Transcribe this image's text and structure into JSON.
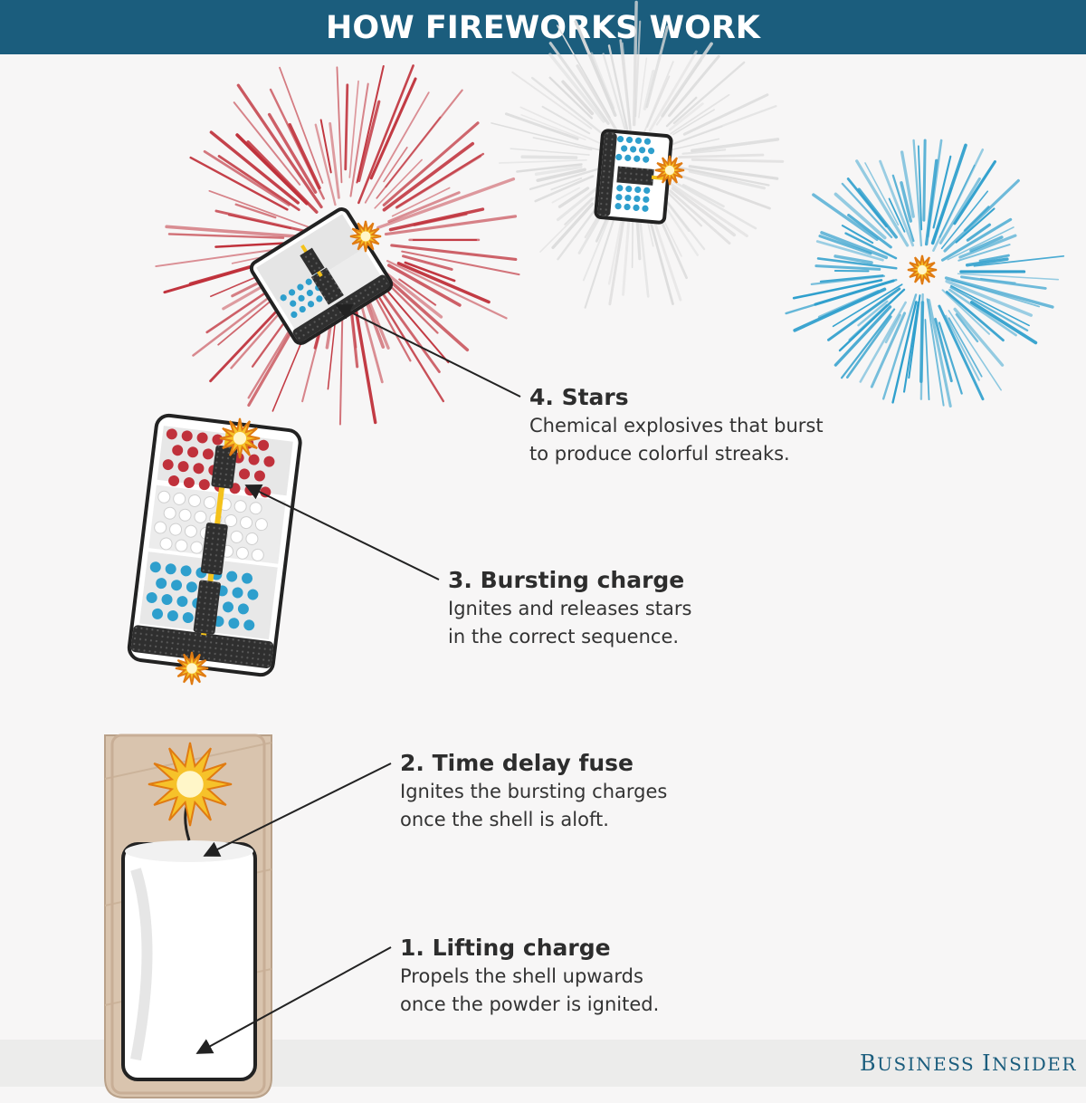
{
  "header": {
    "title": "HOW FIREWORKS WORK"
  },
  "labels": {
    "stars": {
      "title": "4. Stars",
      "desc": "Chemical explosives that burst\nto produce colorful streaks."
    },
    "bursting": {
      "title": "3. Bursting charge",
      "desc": "Ignites and releases stars\nin the correct sequence."
    },
    "fuse": {
      "title": "2. Time delay fuse",
      "desc": "Ignites the bursting charges\nonce the shell is aloft."
    },
    "lifting": {
      "title": "1. Lifting charge",
      "desc": "Propels the shell upwards\nonce the powder is ignited."
    }
  },
  "brand": {
    "b": "B",
    "usiness": "USINESS",
    "i": "I",
    "nsider": "NSIDER"
  },
  "colors": {
    "header": "#1b5d7d",
    "red": "#c0313b",
    "blue": "#2e9fcd",
    "white": "#dddddd",
    "dark": "#2f2f2f",
    "fuse": "#f4c21b",
    "tube": "#d9c3ad"
  }
}
